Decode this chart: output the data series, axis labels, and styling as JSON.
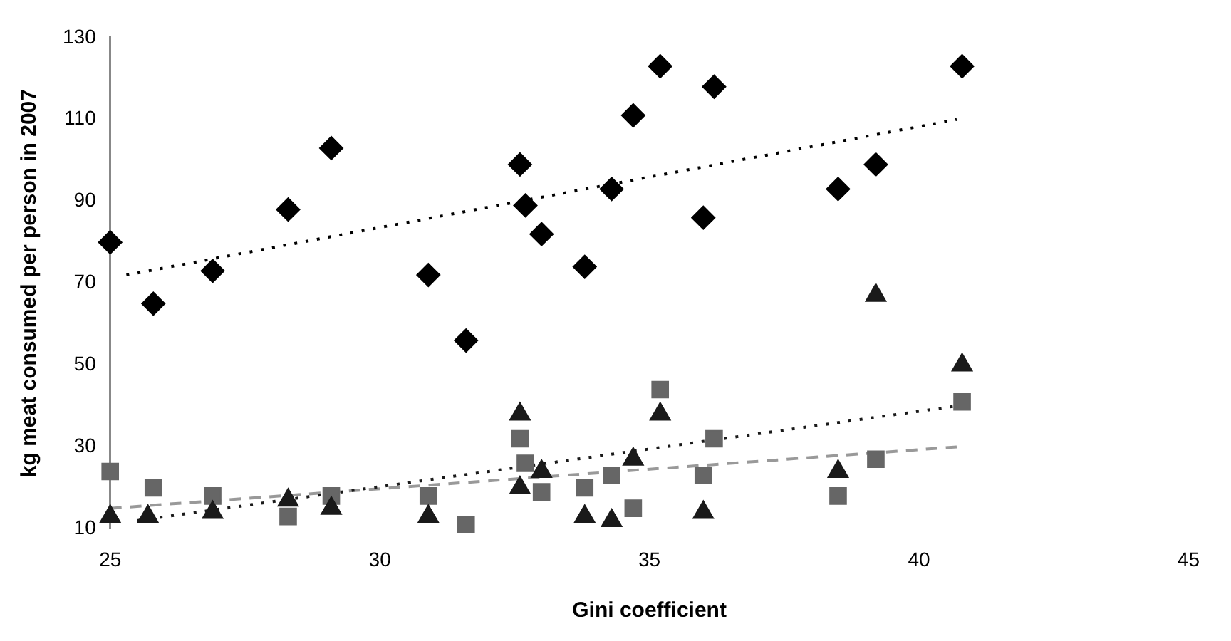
{
  "chart_data": {
    "type": "scatter",
    "xlabel": "Gini coefficient",
    "ylabel": "kg meat consumed per person in 2007",
    "xlim": [
      25,
      45
    ],
    "xticks": [
      25,
      30,
      35,
      40,
      45
    ],
    "ylim": [
      10,
      130
    ],
    "yticks": [
      10,
      30,
      50,
      70,
      90,
      110,
      130
    ],
    "grid": false,
    "legend": false,
    "series": [
      {
        "type": "scatter",
        "marker": "diamond",
        "color": "#000000",
        "x": [
          25,
          25.8,
          26.9,
          28.3,
          29.1,
          30.9,
          31.6,
          32.6,
          32.7,
          33,
          33.8,
          34.3,
          34.7,
          35.2,
          36.2,
          36,
          38.5,
          39.2,
          40.8
        ],
        "values": [
          80,
          65,
          73,
          88,
          103,
          72,
          56,
          99,
          89,
          82,
          74,
          93,
          111,
          123,
          118,
          86,
          93,
          99,
          123
        ]
      },
      {
        "type": "scatter",
        "marker": "triangle",
        "color": "#1a1a1a",
        "x": [
          25,
          25.7,
          26.9,
          28.3,
          29.1,
          30.9,
          32.6,
          32.6,
          33,
          33.8,
          34.3,
          34.7,
          35.2,
          36,
          38.5,
          39.2,
          40.8
        ],
        "values": [
          13,
          13,
          14,
          17,
          15,
          13,
          38,
          20,
          24,
          13,
          12,
          27,
          38,
          14,
          24,
          67,
          50
        ]
      },
      {
        "type": "scatter",
        "marker": "square",
        "color": "#666666",
        "x": [
          25,
          25.8,
          26.9,
          28.3,
          29.1,
          30.9,
          31.6,
          32.6,
          32.7,
          33,
          33.8,
          34.3,
          34.7,
          35.2,
          36,
          36.2,
          38.5,
          39.2,
          40.8
        ],
        "values": [
          24,
          20,
          18,
          13,
          18,
          18,
          11,
          32,
          26,
          19,
          20,
          23,
          15,
          44,
          23,
          32,
          18,
          27,
          41
        ]
      },
      {
        "type": "line",
        "marker": "none",
        "line_style": "dotted",
        "color": "#000000",
        "x": [
          25.3,
          40.7
        ],
        "values": [
          72,
          110
        ]
      },
      {
        "type": "line",
        "marker": "none",
        "line_style": "dotted",
        "color": "#1a1a1a",
        "x": [
          25.5,
          40.7
        ],
        "values": [
          12,
          40
        ]
      },
      {
        "type": "line",
        "marker": "none",
        "line_style": "dashed",
        "color": "#999999",
        "x": [
          25,
          40.7
        ],
        "values": [
          15,
          30
        ]
      }
    ]
  }
}
